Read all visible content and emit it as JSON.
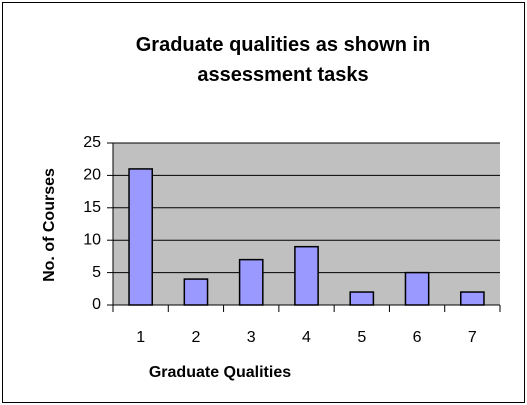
{
  "chart_data": {
    "type": "bar",
    "title": "Graduate qualities as shown in assessment tasks",
    "x_label": "Graduate Qualities",
    "y_label": "No. of Courses",
    "categories": [
      "1",
      "2",
      "3",
      "4",
      "5",
      "6",
      "7"
    ],
    "values": [
      21,
      4,
      7,
      9,
      2,
      5,
      2
    ],
    "color": "#9999ff",
    "plot_background": "#c0c0c0",
    "ylim": [
      0,
      25
    ],
    "yticks": [
      0,
      5,
      10,
      15,
      20,
      25
    ],
    "grid": true
  }
}
